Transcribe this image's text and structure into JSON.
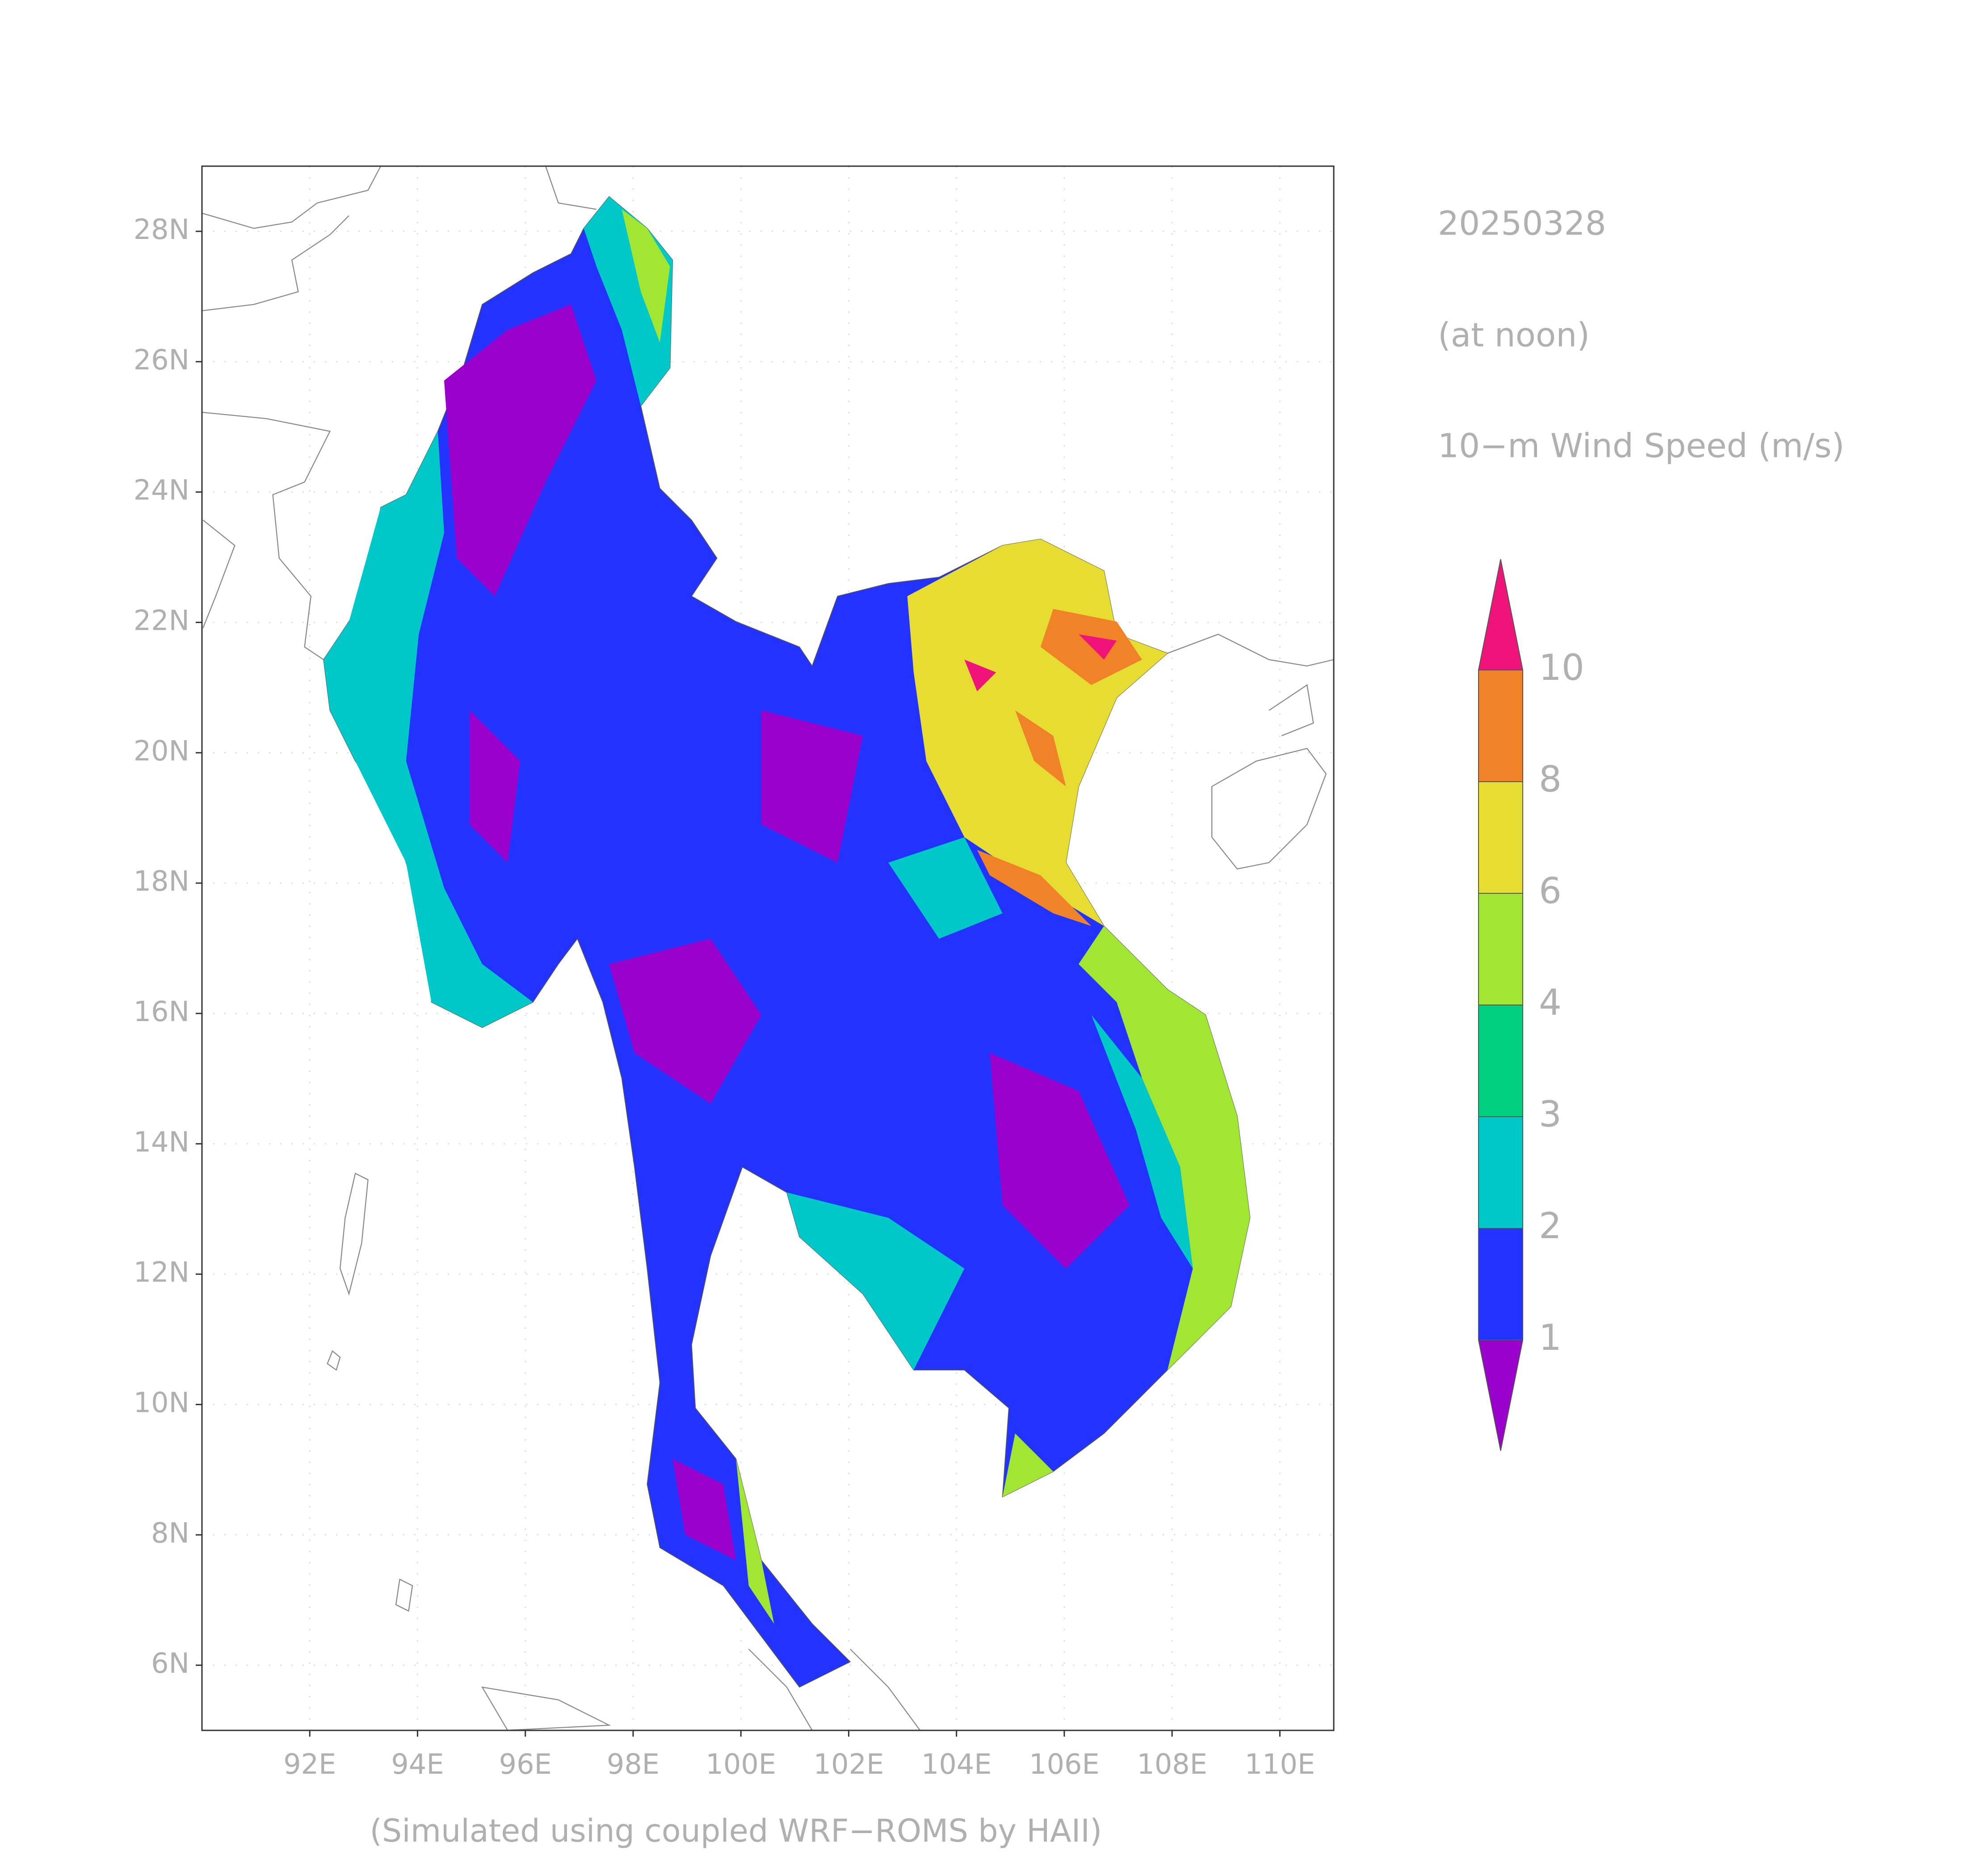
{
  "map": {
    "date": "20250328",
    "time": "(at noon)",
    "variable": "10−m Wind Speed (m/s)",
    "footer": "(Simulated using coupled WRF−ROMS by HAII)",
    "xlim": [
      90,
      111
    ],
    "ylim": [
      5,
      29
    ],
    "xticks": [
      {
        "value": 92,
        "label": "92E"
      },
      {
        "value": 94,
        "label": "94E"
      },
      {
        "value": 96,
        "label": "96E"
      },
      {
        "value": 98,
        "label": "98E"
      },
      {
        "value": 100,
        "label": "100E"
      },
      {
        "value": 102,
        "label": "102E"
      },
      {
        "value": 104,
        "label": "104E"
      },
      {
        "value": 106,
        "label": "106E"
      },
      {
        "value": 108,
        "label": "108E"
      },
      {
        "value": 110,
        "label": "110E"
      }
    ],
    "yticks": [
      {
        "value": 6,
        "label": "6N"
      },
      {
        "value": 8,
        "label": "8N"
      },
      {
        "value": 10,
        "label": "10N"
      },
      {
        "value": 12,
        "label": "12N"
      },
      {
        "value": 14,
        "label": "14N"
      },
      {
        "value": 16,
        "label": "16N"
      },
      {
        "value": 18,
        "label": "18N"
      },
      {
        "value": 20,
        "label": "20N"
      },
      {
        "value": 22,
        "label": "22N"
      },
      {
        "value": 24,
        "label": "24N"
      },
      {
        "value": 26,
        "label": "26N"
      },
      {
        "value": 28,
        "label": "28N"
      }
    ],
    "grid": true,
    "colorbar": {
      "levels": [
        1,
        2,
        3,
        4,
        6,
        8,
        10
      ],
      "colors": [
        "#9900cc",
        "#2233ff",
        "#00c8c8",
        "#00d080",
        "#a0e632",
        "#e6dc32",
        "#f08228",
        "#f0147a"
      ]
    }
  }
}
